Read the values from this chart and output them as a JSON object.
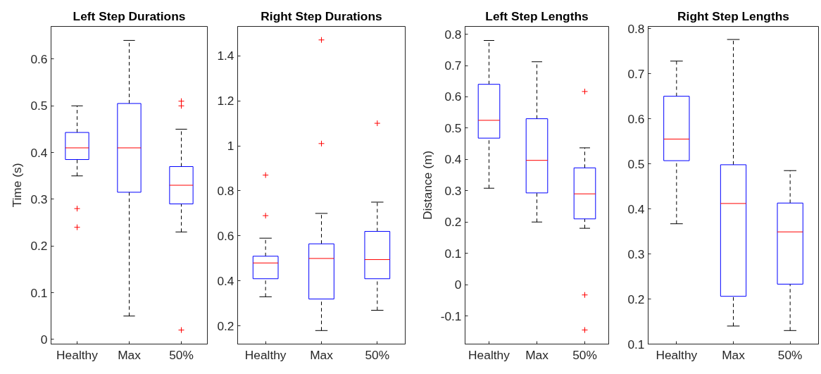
{
  "chart_data": [
    {
      "type": "box",
      "title": "Left Step Durations",
      "ylabel": "Time (s)",
      "categories": [
        "Healthy",
        "Max",
        "50%"
      ],
      "ylim": [
        -0.01,
        0.67
      ],
      "yticks": [
        0,
        0.1,
        0.2,
        0.3,
        0.4,
        0.5,
        0.6
      ],
      "grid": false,
      "boxes": [
        {
          "low": 0.35,
          "q1": 0.385,
          "median": 0.41,
          "q3": 0.443,
          "high": 0.5,
          "outliers": [
            0.28,
            0.24
          ]
        },
        {
          "low": 0.05,
          "q1": 0.315,
          "median": 0.41,
          "q3": 0.505,
          "high": 0.64
        },
        {
          "low": 0.23,
          "q1": 0.29,
          "median": 0.33,
          "q3": 0.37,
          "high": 0.45,
          "outliers": [
            0.51,
            0.5,
            0.02
          ]
        }
      ]
    },
    {
      "type": "box",
      "title": "Right Step Durations",
      "categories": [
        "Healthy",
        "Max",
        "50%"
      ],
      "ylim": [
        0.12,
        1.53
      ],
      "yticks": [
        0.2,
        0.4,
        0.6,
        0.8,
        1,
        1.2,
        1.4
      ],
      "grid": false,
      "boxes": [
        {
          "low": 0.33,
          "q1": 0.41,
          "median": 0.48,
          "q3": 0.51,
          "high": 0.59,
          "outliers": [
            0.87,
            0.69
          ]
        },
        {
          "low": 0.18,
          "q1": 0.32,
          "median": 0.5,
          "q3": 0.565,
          "high": 0.7,
          "outliers": [
            1.47,
            1.01
          ]
        },
        {
          "low": 0.27,
          "q1": 0.41,
          "median": 0.495,
          "q3": 0.62,
          "high": 0.75,
          "outliers": [
            1.1
          ]
        }
      ]
    },
    {
      "type": "box",
      "title": "Left Step Lengths",
      "ylabel": "Distance (m)",
      "categories": [
        "Healthy",
        "Max",
        "50%"
      ],
      "ylim": [
        -0.19,
        0.825
      ],
      "yticks": [
        -0.1,
        0,
        0.1,
        0.2,
        0.3,
        0.4,
        0.5,
        0.6,
        0.7,
        0.8
      ],
      "grid": false,
      "boxes": [
        {
          "low": 0.308,
          "q1": 0.468,
          "median": 0.525,
          "q3": 0.64,
          "high": 0.78
        },
        {
          "low": 0.2,
          "q1": 0.293,
          "median": 0.397,
          "q3": 0.53,
          "high": 0.712
        },
        {
          "low": 0.18,
          "q1": 0.21,
          "median": 0.29,
          "q3": 0.373,
          "high": 0.437,
          "outliers": [
            0.617,
            -0.033,
            -0.145
          ]
        }
      ]
    },
    {
      "type": "box",
      "title": "Right Step Lengths",
      "categories": [
        "Healthy",
        "Max",
        "50%"
      ],
      "ylim": [
        0.1,
        0.805
      ],
      "yticks": [
        0.1,
        0.2,
        0.3,
        0.4,
        0.5,
        0.6,
        0.7,
        0.8
      ],
      "grid": false,
      "boxes": [
        {
          "low": 0.367,
          "q1": 0.507,
          "median": 0.555,
          "q3": 0.65,
          "high": 0.728
        },
        {
          "low": 0.14,
          "q1": 0.206,
          "median": 0.412,
          "q3": 0.498,
          "high": 0.776
        },
        {
          "low": 0.13,
          "q1": 0.233,
          "median": 0.349,
          "q3": 0.413,
          "high": 0.485
        }
      ]
    }
  ]
}
